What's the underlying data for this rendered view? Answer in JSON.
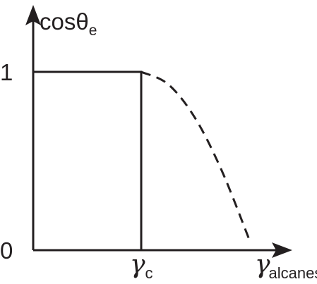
{
  "chart_data": {
    "type": "line",
    "title": "",
    "ylabel": {
      "base": "cosθ",
      "subscript": "e"
    },
    "xlabel": {
      "base": "γ",
      "subscript": "alcanes"
    },
    "critical_marker": {
      "base": "γ",
      "subscript": "c"
    },
    "y_ticks": [
      "1",
      "0"
    ],
    "y_tick_values": [
      1,
      0
    ],
    "ylim": [
      0,
      1.35
    ],
    "xlim": [
      0,
      2.25
    ],
    "x_critical": 1,
    "series": [
      {
        "style": "solid",
        "x": [
          0,
          0,
          1,
          1
        ],
        "y": [
          0,
          1,
          1,
          0
        ]
      },
      {
        "style": "dashed",
        "x": [
          1,
          1.25,
          1.5,
          1.75,
          2.0
        ],
        "y": [
          1,
          0.93,
          0.74,
          0.44,
          0.06
        ]
      }
    ],
    "grid": false,
    "legend": "none",
    "line_color": "#231f20"
  }
}
